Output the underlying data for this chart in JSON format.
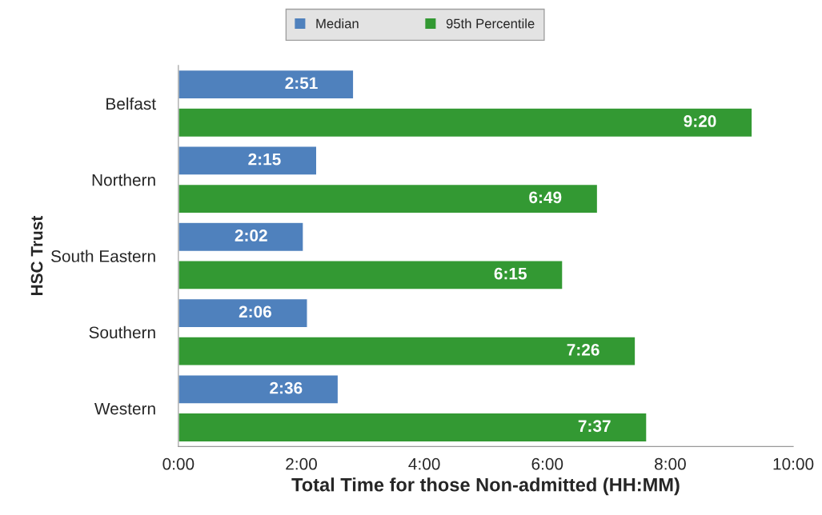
{
  "chart_data": {
    "type": "bar",
    "orientation": "horizontal",
    "xlabel": "Total Time for those Non-admitted (HH:MM)",
    "ylabel": "HSC Trust",
    "categories": [
      "Belfast",
      "Northern",
      "South Eastern",
      "Southern",
      "Western"
    ],
    "series": [
      {
        "name": "Median",
        "color": "#4f81bd",
        "values": [
          2.85,
          2.25,
          2.033,
          2.1,
          2.6
        ],
        "value_labels": [
          "2:51",
          "2:15",
          "2:02",
          "2:06",
          "2:36"
        ]
      },
      {
        "name": "95th Percentile",
        "color": "#339933",
        "values": [
          9.333,
          6.817,
          6.25,
          7.433,
          7.617
        ],
        "value_labels": [
          "9:20",
          "6:49",
          "6:15",
          "7:26",
          "7:37"
        ]
      }
    ],
    "xlim": [
      0,
      10
    ],
    "xticks": [
      {
        "value": 0,
        "label": "0:00"
      },
      {
        "value": 2,
        "label": "2:00"
      },
      {
        "value": 4,
        "label": "4:00"
      },
      {
        "value": 6,
        "label": "6:00"
      },
      {
        "value": 8,
        "label": "8:00"
      },
      {
        "value": 10,
        "label": "10:00"
      }
    ],
    "grid": false,
    "legend": "top"
  }
}
